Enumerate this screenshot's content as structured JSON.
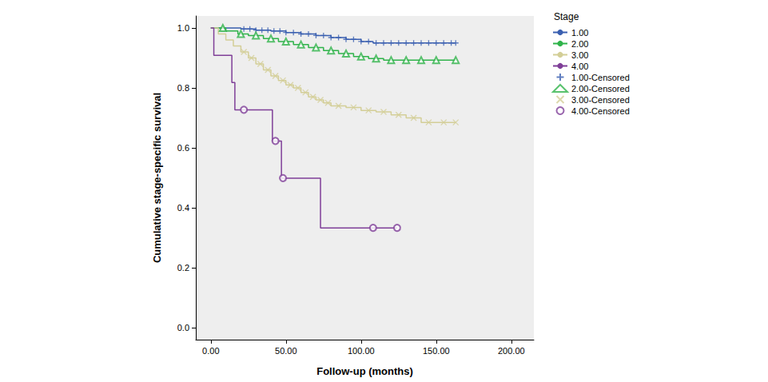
{
  "chart_data": {
    "type": "line",
    "x_label": "Follow-up (months)",
    "y_label": "Cumulative stage-specific survival",
    "legend_title": "Stage",
    "legend": "right",
    "grid": false,
    "xlim": [
      -10,
      215
    ],
    "ylim": [
      -0.04,
      1.04
    ],
    "xticks": [
      {
        "value": 0,
        "label": "0.00"
      },
      {
        "value": 50,
        "label": "50.00"
      },
      {
        "value": 100,
        "label": "100.00"
      },
      {
        "value": 150,
        "label": "150.00"
      },
      {
        "value": 200,
        "label": "200.00"
      }
    ],
    "yticks": [
      {
        "value": 0,
        "label": "0.0"
      },
      0.2,
      0.4,
      0.6,
      0.8,
      {
        "value": 1,
        "label": "1.0"
      }
    ],
    "series": [
      {
        "name": "1.00",
        "type": "line",
        "color": "#3a5fb0",
        "line_style": "solid",
        "x": [
          0,
          20,
          30,
          40,
          50,
          60,
          70,
          80,
          90,
          100,
          108,
          163
        ],
        "values": [
          1.0,
          0.997,
          0.993,
          0.99,
          0.985,
          0.98,
          0.975,
          0.968,
          0.962,
          0.955,
          0.95,
          0.95
        ]
      },
      {
        "name": "2.00",
        "type": "line",
        "color": "#2fb34a",
        "line_style": "solid",
        "x": [
          0,
          10,
          18,
          25,
          35,
          45,
          55,
          65,
          75,
          85,
          95,
          105,
          115,
          163
        ],
        "values": [
          1.0,
          0.99,
          0.98,
          0.975,
          0.965,
          0.955,
          0.945,
          0.935,
          0.925,
          0.915,
          0.905,
          0.898,
          0.893,
          0.893
        ]
      },
      {
        "name": "3.00",
        "type": "line",
        "color": "#d3ce97",
        "line_style": "solid",
        "x": [
          0,
          5,
          10,
          15,
          20,
          25,
          30,
          35,
          40,
          45,
          50,
          55,
          60,
          65,
          70,
          75,
          80,
          90,
          100,
          110,
          120,
          130,
          140,
          163
        ],
        "values": [
          1.0,
          0.98,
          0.96,
          0.94,
          0.92,
          0.9,
          0.88,
          0.86,
          0.84,
          0.825,
          0.81,
          0.8,
          0.785,
          0.77,
          0.76,
          0.75,
          0.74,
          0.735,
          0.725,
          0.72,
          0.71,
          0.7,
          0.685,
          0.685
        ]
      },
      {
        "name": "4.00",
        "type": "line",
        "color": "#7f3f98",
        "line_style": "solid",
        "x": [
          0,
          2,
          14,
          16,
          41,
          47,
          73,
          124
        ],
        "values": [
          1.0,
          0.909,
          0.818,
          0.727,
          0.623,
          0.499,
          0.333,
          0.333
        ]
      },
      {
        "name": "1.00-Censored",
        "type": "scatter",
        "color": "#3a5fb0",
        "marker": "plus",
        "x": [
          22,
          26,
          30,
          34,
          38,
          42,
          46,
          50,
          55,
          60,
          65,
          70,
          75,
          80,
          85,
          90,
          95,
          100,
          105,
          110,
          115,
          120,
          125,
          130,
          135,
          140,
          145,
          150,
          155,
          160,
          163
        ],
        "values": [
          0.997,
          0.997,
          0.993,
          0.993,
          0.993,
          0.99,
          0.99,
          0.985,
          0.985,
          0.98,
          0.98,
          0.975,
          0.975,
          0.968,
          0.968,
          0.962,
          0.962,
          0.955,
          0.955,
          0.95,
          0.95,
          0.95,
          0.95,
          0.95,
          0.95,
          0.95,
          0.95,
          0.95,
          0.95,
          0.95,
          0.95
        ]
      },
      {
        "name": "2.00-Censored",
        "type": "scatter",
        "color": "#2fb34a",
        "marker": "triangle",
        "x": [
          8,
          20,
          30,
          40,
          50,
          60,
          70,
          80,
          90,
          100,
          110,
          120,
          130,
          140,
          150,
          163
        ],
        "values": [
          1.0,
          0.98,
          0.975,
          0.965,
          0.955,
          0.945,
          0.935,
          0.925,
          0.915,
          0.905,
          0.898,
          0.893,
          0.893,
          0.893,
          0.893,
          0.893
        ]
      },
      {
        "name": "3.00-Censored",
        "type": "scatter",
        "color": "#d3ce97",
        "marker": "x",
        "x": [
          22,
          27,
          33,
          38,
          43,
          48,
          53,
          58,
          63,
          68,
          73,
          78,
          85,
          95,
          105,
          115,
          125,
          135,
          145,
          155,
          163
        ],
        "values": [
          0.92,
          0.9,
          0.88,
          0.86,
          0.84,
          0.825,
          0.81,
          0.8,
          0.785,
          0.77,
          0.76,
          0.75,
          0.74,
          0.735,
          0.725,
          0.72,
          0.71,
          0.7,
          0.685,
          0.685,
          0.685
        ]
      },
      {
        "name": "4.00-Censored",
        "type": "scatter",
        "color": "#7f3f98",
        "marker": "circle",
        "x": [
          22,
          43,
          48,
          108,
          124
        ],
        "values": [
          0.727,
          0.623,
          0.499,
          0.333,
          0.333
        ]
      }
    ]
  }
}
